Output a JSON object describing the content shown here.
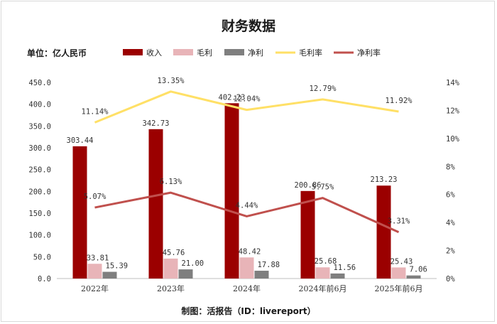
{
  "title": "财务数据",
  "unit_label": "单位：亿人民币",
  "caption": "制图：活报告（ID：livereport）",
  "chart_data": {
    "type": "bar",
    "categories": [
      "2022年",
      "2023年",
      "2024年",
      "2024年前6月",
      "2025年前6月"
    ],
    "series": [
      {
        "name": "收入",
        "kind": "bar",
        "axis": "left",
        "color": "#9b0000",
        "values": [
          303.44,
          342.73,
          402.23,
          200.86,
          213.23
        ],
        "labels": [
          "303.44",
          "342.73",
          "402.23",
          "200.86",
          "213.23"
        ]
      },
      {
        "name": "毛利",
        "kind": "bar",
        "axis": "left",
        "color": "#e8b4b8",
        "values": [
          33.81,
          45.76,
          48.42,
          25.68,
          25.43
        ],
        "labels": [
          "33.81",
          "45.76",
          "48.42",
          "25.68",
          "25.43"
        ]
      },
      {
        "name": "净利",
        "kind": "bar",
        "axis": "left",
        "color": "#7f7f7f",
        "values": [
          15.39,
          21.0,
          17.88,
          11.56,
          7.06
        ],
        "labels": [
          "15.39",
          "21.00",
          "17.88",
          "11.56",
          "7.06"
        ]
      },
      {
        "name": "毛利率",
        "kind": "line",
        "axis": "right",
        "color": "#ffe066",
        "values": [
          11.14,
          13.35,
          12.04,
          12.79,
          11.92
        ],
        "labels": [
          "11.14%",
          "13.35%",
          "12.04%",
          "12.79%",
          "11.92%"
        ]
      },
      {
        "name": "净利率",
        "kind": "line",
        "axis": "right",
        "color": "#c0504d",
        "values": [
          5.07,
          6.13,
          4.44,
          5.75,
          3.31
        ],
        "labels": [
          "5.07%",
          "6.13%",
          "4.44%",
          "5.75%",
          "3.31%"
        ]
      }
    ],
    "y_left": {
      "min": 0,
      "max": 450,
      "step": 50,
      "tick_labels": [
        "0.0",
        "50.0",
        "100.0",
        "150.0",
        "200.0",
        "250.0",
        "300.0",
        "350.0",
        "400.0",
        "450.0"
      ]
    },
    "y_right": {
      "min": 0,
      "max": 14,
      "step": 2,
      "tick_labels": [
        "0%",
        "2%",
        "4%",
        "6%",
        "8%",
        "10%",
        "12%",
        "14%"
      ]
    },
    "legend_position": "top"
  }
}
